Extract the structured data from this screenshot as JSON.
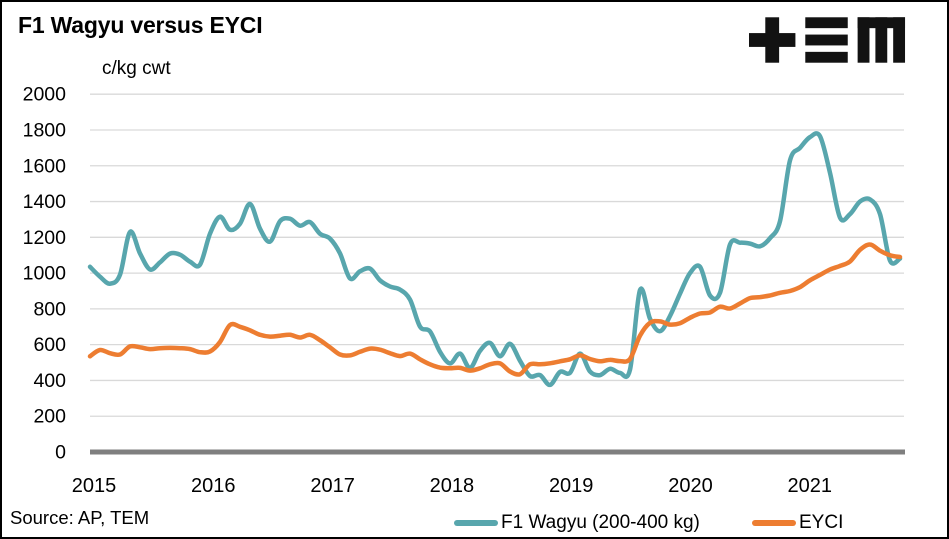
{
  "title": "F1 Wagyu versus EYCI",
  "source_note": "Source: AP, TEM",
  "chart_data": {
    "type": "line",
    "title": "F1 Wagyu versus EYCI",
    "ylabel": "c/kg cwt",
    "ylim": [
      0,
      2000
    ],
    "yticks": [
      0,
      200,
      400,
      600,
      800,
      1000,
      1200,
      1400,
      1600,
      1800,
      2000
    ],
    "xticks": [
      "2015",
      "2016",
      "2017",
      "2018",
      "2019",
      "2020",
      "2021"
    ],
    "x_range": "Jan 2015 to Oct 2021, monthly points",
    "grid": "horizontal",
    "legend_position": "bottom",
    "colors": {
      "gridline": "#D9D9D9",
      "axis": "#7F7F7F",
      "text": "#000000"
    },
    "series": [
      {
        "name": "F1 Wagyu (200-400 kg)",
        "color": "#58A6AD",
        "values": [
          1035,
          980,
          941,
          991,
          1230,
          1110,
          1020,
          1060,
          1109,
          1103,
          1064,
          1047,
          1220,
          1315,
          1242,
          1276,
          1387,
          1248,
          1176,
          1290,
          1304,
          1265,
          1285,
          1220,
          1193,
          1110,
          970,
          1010,
          1025,
          960,
          925,
          908,
          852,
          701,
          674,
          560,
          495,
          550,
          470,
          565,
          610,
          535,
          605,
          510,
          425,
          430,
          375,
          448,
          442,
          550,
          450,
          430,
          465,
          442,
          460,
          905,
          745,
          675,
          760,
          885,
          1000,
          1035,
          875,
          890,
          1160,
          1170,
          1165,
          1150,
          1195,
          1290,
          1630,
          1700,
          1760,
          1765,
          1560,
          1310,
          1330,
          1400,
          1412,
          1330,
          1070,
          1081
        ]
      },
      {
        "name": "EYCI",
        "color": "#ED7D31",
        "values": [
          535,
          570,
          552,
          545,
          590,
          585,
          575,
          580,
          582,
          580,
          575,
          558,
          562,
          615,
          710,
          700,
          680,
          655,
          645,
          650,
          655,
          640,
          655,
          625,
          585,
          545,
          540,
          560,
          578,
          572,
          552,
          536,
          550,
          518,
          490,
          472,
          468,
          470,
          455,
          468,
          490,
          495,
          450,
          435,
          490,
          490,
          496,
          507,
          518,
          540,
          520,
          507,
          515,
          508,
          520,
          650,
          722,
          730,
          712,
          720,
          750,
          774,
          780,
          812,
          802,
          830,
          860,
          866,
          875,
          890,
          900,
          922,
          960,
          990,
          1020,
          1040,
          1065,
          1130,
          1160,
          1125,
          1100,
          1090
        ]
      }
    ]
  }
}
